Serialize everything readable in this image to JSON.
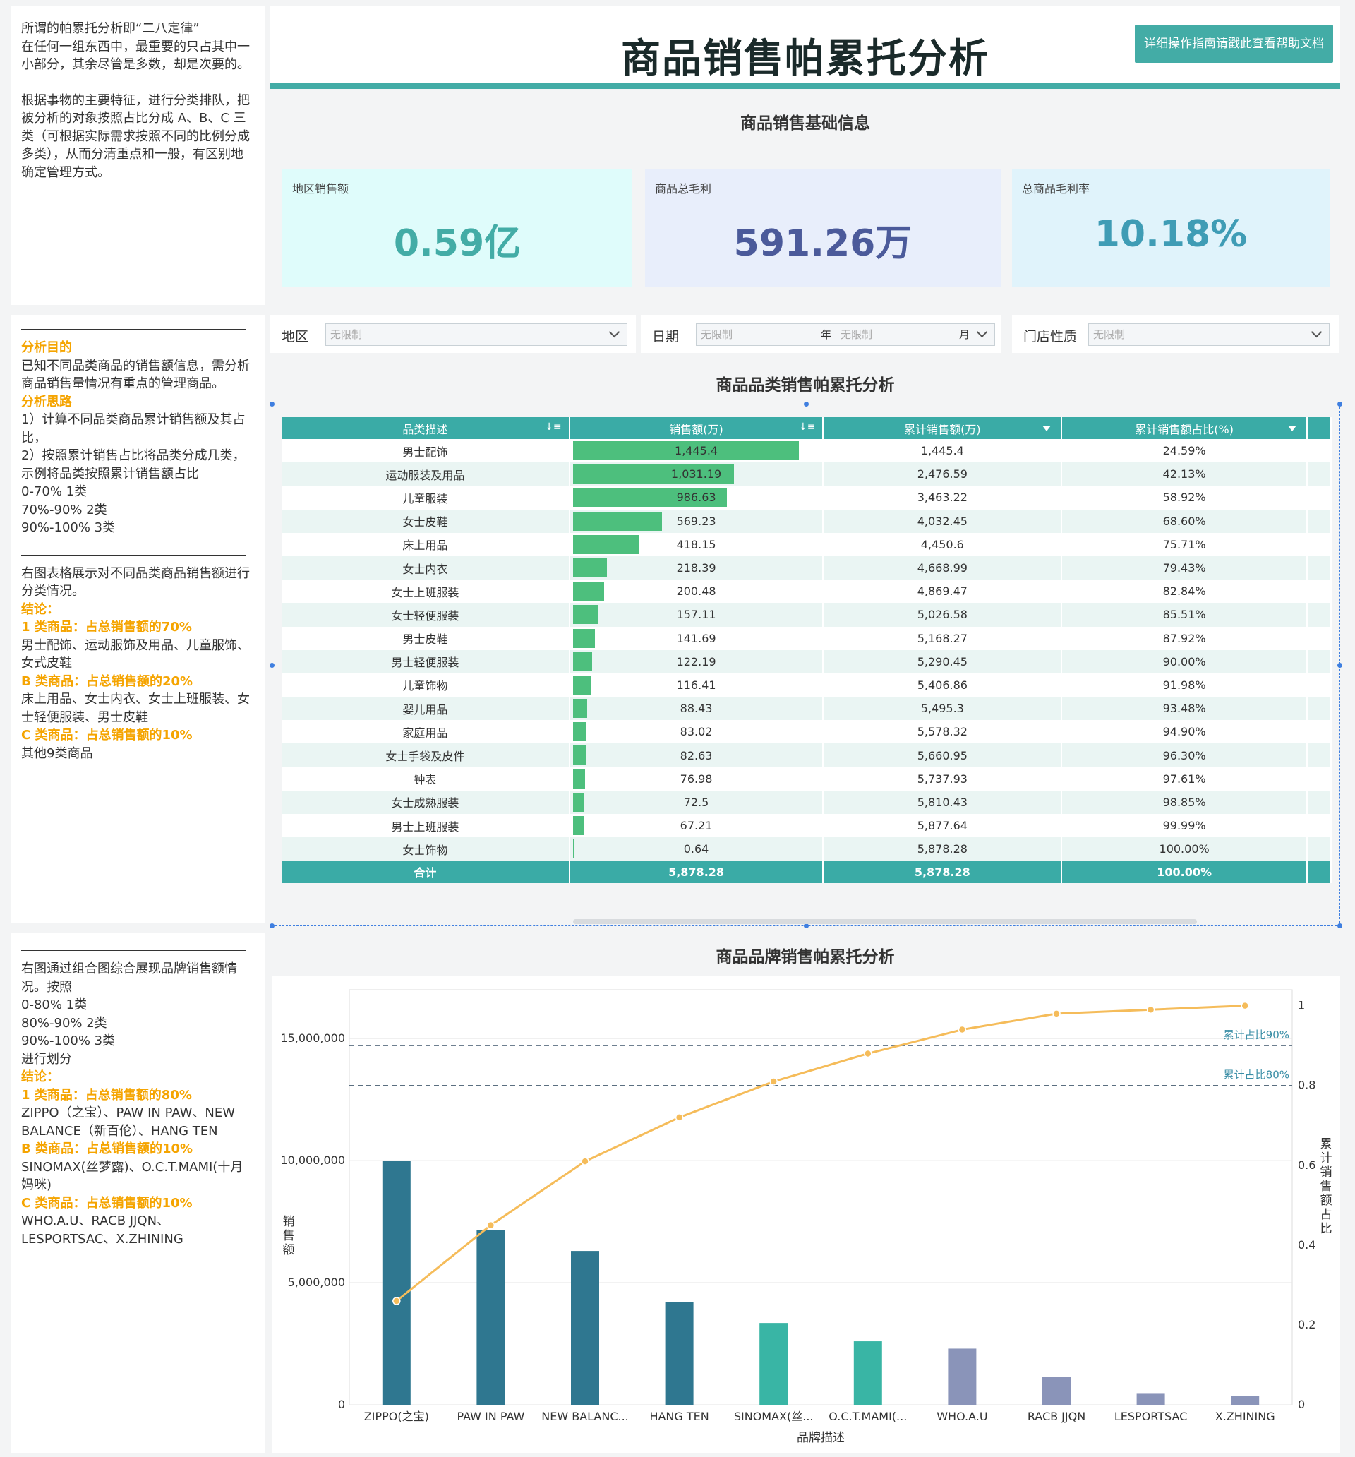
{
  "notes_top": {
    "lines": [
      "所谓的帕累托分析即“二八定律”",
      "在任何一组东西中，最重要的只占其中一小部分，其余尽管是多数，却是次要的。",
      "",
      "根据事物的主要特征，进行分类排队，把被分析的对象按照占比分成 A、B、C 三类（可根据实际需求按照不同的比例分成多类），从而分清重点和一般，有区别地确定管理方式。"
    ]
  },
  "notes_mid": {
    "purpose_title": "分析目的",
    "purpose": "已知不同品类商品的销售额信息，需分析商品销售量情况有重点的管理商品。",
    "approach_title": "分析思路",
    "approach": [
      "1）计算不同品类商品累计销售额及其占比，",
      "2）按照累计销售占比将品类分成几类，示例将品类按照累计销售额占比",
      "0-70% 1类",
      "70%-90% 2类",
      "90%-100% 3类"
    ],
    "desc": "右图表格展示对不同品类商品销售额进行分类情况。",
    "conclusion_title": "结论：",
    "classA_title": "1 类商品：占总销售额的70%",
    "classA": "男士配饰、运动服饰及用品、儿童服饰、女式皮鞋",
    "classB_title": "B 类商品：占总销售额的20%",
    "classB": "床上用品、女士内衣、女士上班服装、女士轻便服装、男士皮鞋",
    "classC_title": "C 类商品：占总销售额的10%",
    "classC": "其他9类商品"
  },
  "notes_bot": {
    "desc": [
      "右图通过组合图综合展现品牌销售额情况。按照",
      "0-80% 1类",
      "80%-90% 2类",
      "90%-100% 3类",
      "进行划分"
    ],
    "conclusion_title": "结论：",
    "classA_title": "1 类商品：占总销售额的80%",
    "classA": "ZIPPO（之宝）、PAW IN PAW、NEW BALANCE（新百伦）、HANG TEN",
    "classB_title": "B 类商品：占总销售额的10%",
    "classB": "SINOMAX(丝梦露)、O.C.T.MAMI(十月妈咪)",
    "classC_title": "C 类商品：占总销售额的10%",
    "classC": "WHO.A.U、RACB JJQN、LESPORTSAC、X.ZHINING"
  },
  "header": {
    "title": "商品销售帕累托分析",
    "help_button": "详细操作指南请戳此查看帮助文档"
  },
  "basic_info": {
    "section_title": "商品销售基础信息",
    "kpis": [
      {
        "label": "地区销售额",
        "value": "0.59亿",
        "color": "#43aca6",
        "bg": "#dffcfb"
      },
      {
        "label": "商品总毛利",
        "value": "591.26万",
        "color": "#4b5a9a",
        "bg": "#e8eefb"
      },
      {
        "label": "总商品毛利率",
        "value": "10.18%",
        "color": "#3f9cb5",
        "bg": "#e0f3fb"
      }
    ]
  },
  "filters": {
    "region_label": "地区",
    "region_value": "无限制",
    "date_label": "日期",
    "year_value": "无限制",
    "year_unit": "年",
    "month_value": "无限制",
    "month_unit": "月",
    "store_label": "门店性质",
    "store_value": "无限制"
  },
  "category_table": {
    "section_title": "商品品类销售帕累托分析",
    "headers": [
      "品类描述",
      "销售额(万)",
      "累计销售额(万)",
      "累计销售额占比(%)"
    ],
    "bar_color": "#4dbf7d",
    "bar_max": 1445.4,
    "rows": [
      {
        "name": "男士配饰",
        "sales": "1,445.4",
        "sales_num": 1445.4,
        "cum": "1,445.4",
        "pct": "24.59%"
      },
      {
        "name": "运动服装及用品",
        "sales": "1,031.19",
        "sales_num": 1031.19,
        "cum": "2,476.59",
        "pct": "42.13%"
      },
      {
        "name": "儿童服装",
        "sales": "986.63",
        "sales_num": 986.63,
        "cum": "3,463.22",
        "pct": "58.92%"
      },
      {
        "name": "女士皮鞋",
        "sales": "569.23",
        "sales_num": 569.23,
        "cum": "4,032.45",
        "pct": "68.60%"
      },
      {
        "name": "床上用品",
        "sales": "418.15",
        "sales_num": 418.15,
        "cum": "4,450.6",
        "pct": "75.71%"
      },
      {
        "name": "女士内衣",
        "sales": "218.39",
        "sales_num": 218.39,
        "cum": "4,668.99",
        "pct": "79.43%"
      },
      {
        "name": "女士上班服装",
        "sales": "200.48",
        "sales_num": 200.48,
        "cum": "4,869.47",
        "pct": "82.84%"
      },
      {
        "name": "女士轻便服装",
        "sales": "157.11",
        "sales_num": 157.11,
        "cum": "5,026.58",
        "pct": "85.51%"
      },
      {
        "name": "男士皮鞋",
        "sales": "141.69",
        "sales_num": 141.69,
        "cum": "5,168.27",
        "pct": "87.92%"
      },
      {
        "name": "男士轻便服装",
        "sales": "122.19",
        "sales_num": 122.19,
        "cum": "5,290.45",
        "pct": "90.00%"
      },
      {
        "name": "儿童饰物",
        "sales": "116.41",
        "sales_num": 116.41,
        "cum": "5,406.86",
        "pct": "91.98%"
      },
      {
        "name": "婴儿用品",
        "sales": "88.43",
        "sales_num": 88.43,
        "cum": "5,495.3",
        "pct": "93.48%"
      },
      {
        "name": "家庭用品",
        "sales": "83.02",
        "sales_num": 83.02,
        "cum": "5,578.32",
        "pct": "94.90%"
      },
      {
        "name": "女士手袋及皮件",
        "sales": "82.63",
        "sales_num": 82.63,
        "cum": "5,660.95",
        "pct": "96.30%"
      },
      {
        "name": "钟表",
        "sales": "76.98",
        "sales_num": 76.98,
        "cum": "5,737.93",
        "pct": "97.61%"
      },
      {
        "name": "女士成熟服装",
        "sales": "72.5",
        "sales_num": 72.5,
        "cum": "5,810.43",
        "pct": "98.85%"
      },
      {
        "name": "男士上班服装",
        "sales": "67.21",
        "sales_num": 67.21,
        "cum": "5,877.64",
        "pct": "99.99%"
      },
      {
        "name": "女士饰物",
        "sales": "0.64",
        "sales_num": 0.64,
        "cum": "5,878.28",
        "pct": "100.00%"
      }
    ],
    "total": {
      "name": "合计",
      "sales": "5,878.28",
      "cum": "5,878.28",
      "pct": "100.00%"
    }
  },
  "brand_section_title": "商品品牌销售帕累托分析",
  "chart_data": {
    "type": "bar",
    "xlabel": "品牌描述",
    "ylabel": "销售额",
    "y2label": "累计销售额占比",
    "ylim": [
      0,
      17000000
    ],
    "y2lim": [
      0,
      1.04
    ],
    "yticks": [
      0,
      5000000,
      10000000,
      15000000
    ],
    "ytick_labels": [
      "0",
      "5,000,000",
      "10,000,000",
      "15,000,000"
    ],
    "y2ticks": [
      0,
      0.2,
      0.4,
      0.6,
      0.8,
      1
    ],
    "y2tick_labels": [
      "0",
      "0.2",
      "0.4",
      "0.6",
      "0.8",
      "1"
    ],
    "categories": [
      "ZIPPO(之宝)",
      "PAW IN PAW",
      "NEW BALANC...",
      "HANG TEN",
      "SINOMAX(丝...",
      "O.C.T.MAMI(...",
      "WHO.A.U",
      "RACB JJQN",
      "LESPORTSAC",
      "X.ZHINING"
    ],
    "series": [
      {
        "name": "销售额",
        "type": "bar",
        "values": [
          10000000,
          7150000,
          6300000,
          4200000,
          3350000,
          2600000,
          2300000,
          1150000,
          450000,
          350000
        ],
        "colors": [
          "#2f7790",
          "#2f7790",
          "#2f7790",
          "#2f7790",
          "#39b5a5",
          "#39b5a5",
          "#8a94b9",
          "#8a94b9",
          "#8a94b9",
          "#8a94b9"
        ]
      },
      {
        "name": "累计销售额占比",
        "type": "line",
        "values": [
          0.26,
          0.45,
          0.61,
          0.72,
          0.81,
          0.88,
          0.94,
          0.98,
          0.99,
          1.0
        ],
        "color": "#f5bc5a"
      }
    ],
    "reference_lines": [
      {
        "label": "累计占比90%",
        "value": 0.9
      },
      {
        "label": "累计占比80%",
        "value": 0.8
      }
    ],
    "grid": true
  }
}
